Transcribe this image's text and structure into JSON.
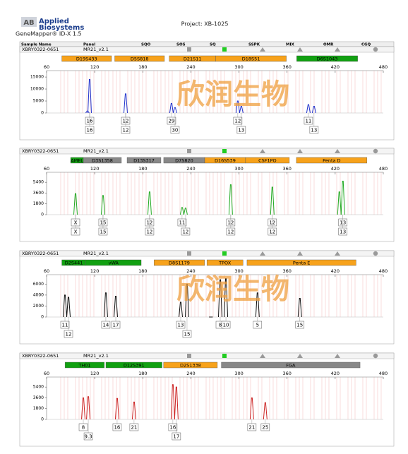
{
  "header": {
    "logo_mark": "AB",
    "logo_line1": "Applied",
    "logo_line2": "Biosystems",
    "software": "GeneMapper® ID-X  1.5",
    "project": "Project: XB-1025"
  },
  "columns": [
    "Sample Name",
    "Panel",
    "SQO",
    "SOS",
    "SQ",
    "SSPK",
    "MIX",
    "OMR",
    "CGQ"
  ],
  "watermark": "欣润生物",
  "panels": [
    {
      "sample": "XBRY0322-0651",
      "panel": "MR21_v2.1",
      "color": "#2233cc",
      "xlim": [
        60,
        480
      ],
      "xticks": [
        60,
        120,
        180,
        240,
        300,
        360,
        420,
        480
      ],
      "ylim": [
        0,
        16500
      ],
      "yticks": [
        0,
        5000,
        10000,
        15000
      ],
      "markers": [
        {
          "name": "D19S433",
          "start": 79,
          "end": 141,
          "color": "#f7a21b"
        },
        {
          "name": "D5S818",
          "start": 145,
          "end": 207,
          "color": "#f7a21b"
        },
        {
          "name": "D21S11",
          "start": 213,
          "end": 271,
          "color": "#f7a21b"
        },
        {
          "name": "D18S51",
          "start": 271,
          "end": 359,
          "color": "#f7a21b"
        },
        {
          "name": "D6S1043",
          "start": 372,
          "end": 448,
          "color": "#11a011"
        }
      ],
      "peaks": [
        {
          "x": 111,
          "height": 800
        },
        {
          "x": 113.7,
          "height": 14000
        },
        {
          "x": 158.6,
          "height": 8000
        },
        {
          "x": 215.8,
          "height": 4000
        },
        {
          "x": 220.2,
          "height": 2200
        },
        {
          "x": 298.5,
          "height": 5000
        },
        {
          "x": 302.9,
          "height": 2800
        },
        {
          "x": 386.6,
          "height": 3500
        },
        {
          "x": 393.6,
          "height": 2800
        }
      ],
      "alleles": [
        [
          {
            "label": "16",
            "x": 113.7
          },
          {
            "label": "12",
            "x": 158.6
          },
          {
            "label": "29",
            "x": 215.8
          },
          {
            "label": "12",
            "x": 298.5
          },
          {
            "label": "11",
            "x": 386.6
          }
        ],
        [
          {
            "label": "16",
            "x": 113.7
          },
          {
            "label": "12",
            "x": 158.6
          },
          {
            "label": "30",
            "x": 220.2
          },
          {
            "label": "13",
            "x": 302.9
          },
          {
            "label": "13",
            "x": 393.6
          }
        ]
      ]
    },
    {
      "sample": "XBRY0322-0651",
      "panel": "MR21_v2.1",
      "color": "#22aa22",
      "xlim": [
        60,
        480
      ],
      "xticks": [
        60,
        120,
        180,
        240,
        300,
        360,
        420,
        480
      ],
      "ylim": [
        0,
        6600
      ],
      "yticks": [
        0,
        1800,
        3600,
        5400
      ],
      "markers": [
        {
          "name": "AMEL",
          "start": 90,
          "end": 105.8,
          "color": "#11a011"
        },
        {
          "name": "D3S1358",
          "start": 105.8,
          "end": 153.3,
          "color": "#888888"
        },
        {
          "name": "D13S317",
          "start": 160.4,
          "end": 202.6,
          "color": "#888888"
        },
        {
          "name": "D7S820",
          "start": 206.1,
          "end": 257.2,
          "color": "#888888"
        },
        {
          "name": "D16S539",
          "start": 257.2,
          "end": 308.2,
          "color": "#f7a21b"
        },
        {
          "name": "CSF1PO",
          "start": 308.2,
          "end": 362.8,
          "color": "#f7a21b"
        },
        {
          "name": "Penta D",
          "start": 371.6,
          "end": 459.6,
          "color": "#f7a21b"
        }
      ],
      "peaks": [
        {
          "x": 96.1,
          "height": 3500
        },
        {
          "x": 130.4,
          "height": 3200
        },
        {
          "x": 188.5,
          "height": 3800
        },
        {
          "x": 229,
          "height": 1200
        },
        {
          "x": 233.4,
          "height": 1100
        },
        {
          "x": 289.7,
          "height": 5000
        },
        {
          "x": 341.6,
          "height": 4600
        },
        {
          "x": 425.2,
          "height": 3800
        },
        {
          "x": 429.6,
          "height": 5600
        }
      ],
      "alleles": [
        [
          {
            "label": "X",
            "x": 96.1
          },
          {
            "label": "15",
            "x": 130.4
          },
          {
            "label": "12",
            "x": 188.5
          },
          {
            "label": "11",
            "x": 229
          },
          {
            "label": "12",
            "x": 289.7
          },
          {
            "label": "12",
            "x": 341.6
          },
          {
            "label": "13",
            "x": 429.6
          }
        ],
        [
          {
            "label": "X",
            "x": 96.1
          },
          {
            "label": "15",
            "x": 130.4
          },
          {
            "label": "12",
            "x": 188.5
          },
          {
            "label": "12",
            "x": 233.4
          },
          {
            "label": "12",
            "x": 289.7
          },
          {
            "label": "12",
            "x": 341.6
          },
          {
            "label": "13",
            "x": 429.6
          }
        ]
      ]
    },
    {
      "sample": "XBRY0322-0651",
      "panel": "MR21_v2.1",
      "color": "#111111",
      "xlim": [
        60,
        480
      ],
      "xticks": [
        60,
        120,
        180,
        240,
        300,
        360,
        420,
        480
      ],
      "ylim": [
        0,
        7200
      ],
      "yticks": [
        0,
        2000,
        4000,
        6000
      ],
      "markers": [
        {
          "name": "D2S441",
          "start": 79,
          "end": 109,
          "color": "#11a011"
        },
        {
          "name": "vWA",
          "start": 109,
          "end": 178,
          "color": "#11a011"
        },
        {
          "name": "D8S1179",
          "start": 194,
          "end": 257,
          "color": "#f7a21b"
        },
        {
          "name": "TPOX",
          "start": 260,
          "end": 305,
          "color": "#f7a21b"
        },
        {
          "name": "Penta E",
          "start": 310,
          "end": 446,
          "color": "#f7a21b"
        }
      ],
      "peaks": [
        {
          "x": 82.9,
          "height": 4000
        },
        {
          "x": 87.3,
          "height": 3600
        },
        {
          "x": 133.9,
          "height": 4400
        },
        {
          "x": 146.3,
          "height": 3800
        },
        {
          "x": 227.3,
          "height": 2700
        },
        {
          "x": 235.2,
          "height": 6000
        },
        {
          "x": 276.6,
          "height": 6800
        },
        {
          "x": 283.7,
          "height": 7000
        },
        {
          "x": 265.0,
          "height": 0
        },
        {
          "x": 264.9,
          "height": 0
        },
        {
          "x": 323.1,
          "height": 4400
        },
        {
          "x": 375.9,
          "height": 3400
        }
      ],
      "alleles": [
        [
          {
            "label": "11",
            "x": 82.9
          },
          {
            "label": "14",
            "x": 133.9
          },
          {
            "label": "17",
            "x": 146.3
          },
          {
            "label": "13",
            "x": 227.3
          },
          {
            "label": "8",
            "x": 276.6
          },
          {
            "label": "10",
            "x": 283.7
          },
          {
            "label": "5",
            "x": 323.1
          },
          {
            "label": "15",
            "x": 375.9
          }
        ],
        [
          {
            "label": "12",
            "x": 87.3
          },
          {
            "label": "15",
            "x": 235.2
          }
        ]
      ]
    },
    {
      "sample": "XBRY0322-0651",
      "panel": "MR21_v2.1",
      "color": "#cc2222",
      "xlim": [
        60,
        480
      ],
      "xticks": [
        60,
        120,
        180,
        240,
        300,
        360,
        420,
        480
      ],
      "ylim": [
        0,
        6600
      ],
      "yticks": [
        0,
        1800,
        3600,
        5400
      ],
      "markers": [
        {
          "name": "TH01",
          "start": 83,
          "end": 132,
          "color": "#11a011"
        },
        {
          "name": "D12S391",
          "start": 134,
          "end": 204,
          "color": "#11a011"
        },
        {
          "name": "D2S1338",
          "start": 206,
          "end": 273,
          "color": "#f7a21b"
        },
        {
          "name": "FGA",
          "start": 278,
          "end": 451,
          "color": "#888888"
        }
      ],
      "peaks": [
        {
          "x": 105.8,
          "height": 3600
        },
        {
          "x": 112,
          "height": 3800
        },
        {
          "x": 148,
          "height": 3500
        },
        {
          "x": 169.1,
          "height": 2900
        },
        {
          "x": 217.5,
          "height": 5800
        },
        {
          "x": 221.9,
          "height": 5400
        },
        {
          "x": 316.1,
          "height": 3600
        },
        {
          "x": 332.8,
          "height": 2800
        }
      ],
      "alleles": [
        [
          {
            "label": "8",
            "x": 105.8
          },
          {
            "label": "16",
            "x": 148
          },
          {
            "label": "21",
            "x": 169.1
          },
          {
            "label": "16",
            "x": 217.5
          },
          {
            "label": "21",
            "x": 316.1
          },
          {
            "label": "25",
            "x": 332.8
          }
        ],
        [
          {
            "label": "9.3",
            "x": 112
          },
          {
            "label": "17",
            "x": 221.9
          }
        ]
      ]
    }
  ]
}
